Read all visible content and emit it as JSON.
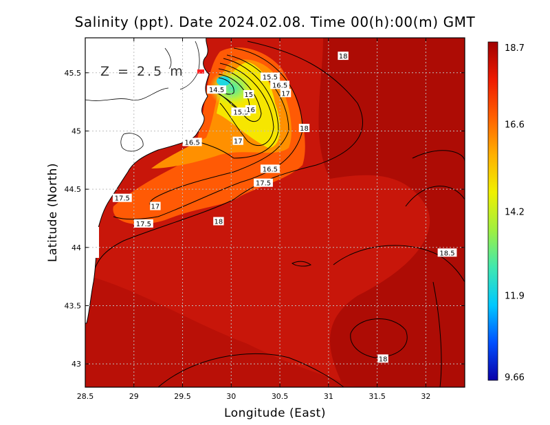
{
  "chart_data": {
    "type": "heatmap",
    "title": "Salinity (ppt). Date 2024.02.08. Time 00(h):00(m) GMT",
    "depth_label": "Z = 2.5 m",
    "xlabel": "Longitude (East)",
    "ylabel": "Latitude (North)",
    "xlim": [
      28.5,
      32.4
    ],
    "ylim": [
      42.8,
      45.8
    ],
    "x_ticks": [
      "28.5",
      "29",
      "29.5",
      "30",
      "30.5",
      "31",
      "31.5",
      "32"
    ],
    "y_ticks": [
      "43",
      "43.5",
      "44",
      "44.5",
      "45",
      "45.5"
    ],
    "grid": true,
    "colorbar": {
      "min": 9.66,
      "max": 18.7,
      "ticks": [
        "18.7",
        "16.6",
        "14.2",
        "11.9",
        "9.66"
      ],
      "colors": [
        "#0a00a8",
        "#0050ff",
        "#00c8ff",
        "#40e8b0",
        "#a0f040",
        "#f0f000",
        "#ffb000",
        "#ff6000",
        "#ee1a00",
        "#a00000"
      ]
    },
    "contour_labels": [
      {
        "text": "18",
        "lon": 31.15,
        "lat": 45.64
      },
      {
        "text": "15.5",
        "lon": 30.4,
        "lat": 45.46
      },
      {
        "text": "16.5",
        "lon": 30.5,
        "lat": 45.39
      },
      {
        "text": "17",
        "lon": 30.56,
        "lat": 45.32
      },
      {
        "text": "14.5",
        "lon": 29.85,
        "lat": 45.35
      },
      {
        "text": "15",
        "lon": 30.18,
        "lat": 45.31
      },
      {
        "text": "15.5",
        "lon": 30.1,
        "lat": 45.16
      },
      {
        "text": "16",
        "lon": 30.2,
        "lat": 45.18
      },
      {
        "text": "18",
        "lon": 30.75,
        "lat": 45.02
      },
      {
        "text": "16.5",
        "lon": 29.6,
        "lat": 44.9
      },
      {
        "text": "17",
        "lon": 30.07,
        "lat": 44.91
      },
      {
        "text": "16.5",
        "lon": 30.4,
        "lat": 44.67
      },
      {
        "text": "17.5",
        "lon": 30.33,
        "lat": 44.55
      },
      {
        "text": "17.5",
        "lon": 28.88,
        "lat": 44.42
      },
      {
        "text": "17",
        "lon": 29.22,
        "lat": 44.35
      },
      {
        "text": "17.5",
        "lon": 29.1,
        "lat": 44.2
      },
      {
        "text": "18",
        "lon": 29.87,
        "lat": 44.22
      },
      {
        "text": "18.5",
        "lon": 32.22,
        "lat": 43.95
      },
      {
        "text": "18",
        "lon": 31.56,
        "lat": 43.04
      }
    ]
  }
}
